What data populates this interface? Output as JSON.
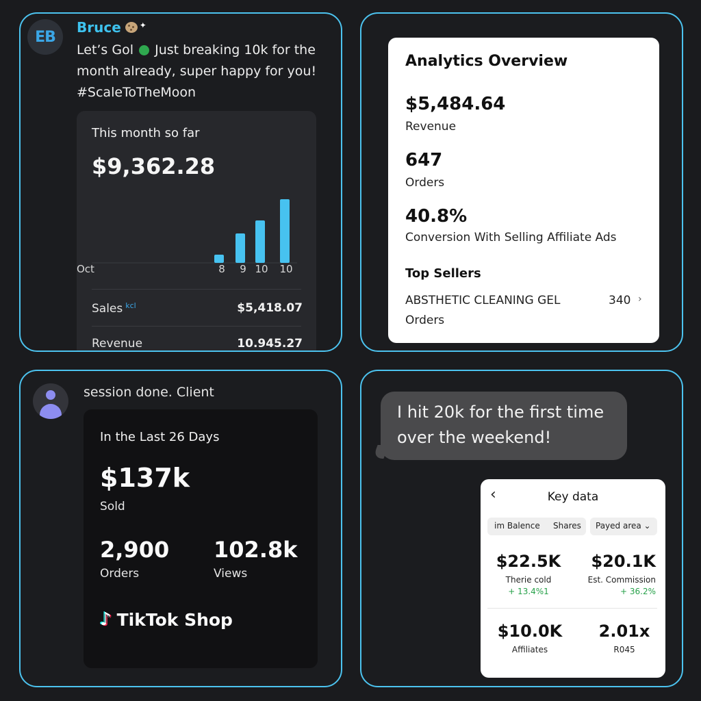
{
  "panel1": {
    "avatar_initials": "EB",
    "sender": "Bruce",
    "message_before": "Let’s Gol",
    "message_after": "Just breaking 10k for the month already, super happy for you! #ScaleToTheMoon",
    "card_title": "This month so far",
    "card_value": "$9,362.28",
    "chart_data": {
      "type": "bar",
      "categories": [
        "8",
        "9",
        "10",
        "10"
      ],
      "values": [
        1.2,
        4.3,
        6.2,
        9.3
      ],
      "xlabel": "Oct",
      "ylabel": "",
      "ylim": [
        0,
        10
      ]
    },
    "row1_label": "Sales",
    "row1_badge": "kcl",
    "row1_value": "$5,418.07",
    "row2_label": "Revenue",
    "row2_value": "10.945.27"
  },
  "panel2": {
    "title": "Analytics Overview",
    "revenue_value": "$5,484.64",
    "revenue_label": "Revenue",
    "orders_value": "647",
    "orders_label": "Orders",
    "conversion_value": "40.8%",
    "conversion_label": "Conversion With Selling Affiliate Ads",
    "top_sellers_title": "Top Sellers",
    "seller_name": "ABSTHETIC CLEANING GEL",
    "seller_count": "340",
    "seller_unit": "Orders",
    "chevron": "›"
  },
  "panel3": {
    "message": "session done. Client",
    "card_title": "In the Last 26 Days",
    "sold_value": "$137k",
    "sold_label": "Sold",
    "orders_value": "2,900",
    "orders_label": "Orders",
    "views_value": "102.8k",
    "views_label": "Views",
    "brand": "TikTok Shop"
  },
  "panel4": {
    "bubble_text": "I hit 20k for the first time over the weekend!",
    "back": "‹",
    "card_title": "Key data",
    "tab1": "im Balence",
    "tab2": "Shares",
    "dropdown": "Payed area ⌄",
    "m1_value": "$22.5K",
    "m1_label": "Therie cold",
    "m1_delta": "+ 13.4%1",
    "m2_value": "$20.1K",
    "m2_label": "Est. Commission",
    "m2_delta": "+ 36.2%",
    "m3_value": "$10.0K",
    "m3_label": "Affiliates",
    "m4_value": "2.01x",
    "m4_label": "R045"
  },
  "colors": {
    "accent": "#4cc3ef",
    "bar": "#47c2f0",
    "positive": "#27a14a"
  }
}
